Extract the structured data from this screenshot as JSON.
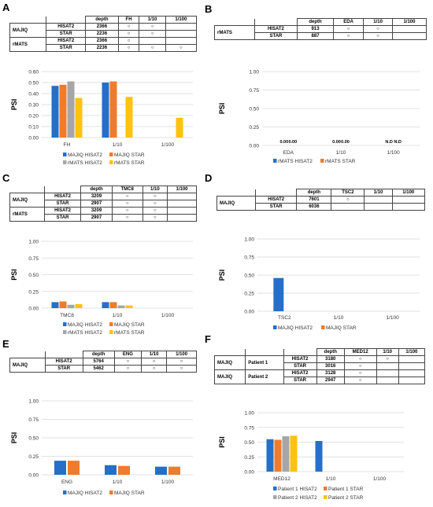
{
  "colors": {
    "blue": "#2470C8",
    "orange": "#F07B2A",
    "gray": "#A6A6A6",
    "yellow": "#FFC20F",
    "grid": "#D9D9D9"
  },
  "circle_mark": "○",
  "panels": {
    "A": {
      "label": "A",
      "table": {
        "header": [
          "depth",
          "FH",
          "1/10",
          "1/100"
        ],
        "groups": [
          {
            "name": "MAJIQ",
            "rows": [
              {
                "aligner": "HISAT2",
                "depth": "2366",
                "marks": [
                  true,
                  true,
                  false
                ]
              },
              {
                "aligner": "STAR",
                "depth": "2236",
                "marks": [
                  true,
                  true,
                  false
                ]
              }
            ]
          },
          {
            "name": "rMATS",
            "rows": [
              {
                "aligner": "HISAT2",
                "depth": "2366",
                "marks": [
                  true,
                  false,
                  false
                ]
              },
              {
                "aligner": "STAR",
                "depth": "2236",
                "marks": [
                  true,
                  true,
                  true
                ]
              }
            ]
          }
        ]
      },
      "chart_data": {
        "type": "bar",
        "ylabel": "PSI",
        "ylim": [
          0,
          0.6
        ],
        "yticks": [
          "0.00",
          "0.10",
          "0.20",
          "0.30",
          "0.40",
          "0.50",
          "0.60"
        ],
        "categories": [
          "FH",
          "1/10",
          "1/100"
        ],
        "series": [
          {
            "name": "MAJIQ HISAT2",
            "color": "blue",
            "values": [
              0.47,
              0.5,
              null
            ]
          },
          {
            "name": "MAJIQ STAR",
            "color": "orange",
            "values": [
              0.48,
              0.51,
              null
            ]
          },
          {
            "name": "rMATS HISAT2",
            "color": "gray",
            "values": [
              0.51,
              null,
              null
            ]
          },
          {
            "name": "rMATS STAR",
            "color": "yellow",
            "values": [
              0.36,
              0.37,
              0.18
            ]
          }
        ]
      }
    },
    "B": {
      "label": "B",
      "table": {
        "header": [
          "depth",
          "EDA",
          "1/10",
          "1/100"
        ],
        "groups": [
          {
            "name": "rMATS",
            "rows": [
              {
                "aligner": "HISAT2",
                "depth": "913",
                "marks": [
                  true,
                  true,
                  false
                ]
              },
              {
                "aligner": "STAR",
                "depth": "887",
                "marks": [
                  true,
                  true,
                  false
                ]
              }
            ]
          }
        ]
      },
      "chart_data": {
        "type": "bar",
        "ylabel": "PSI",
        "ylim": [
          0,
          1
        ],
        "yticks": [
          "0.00",
          "0.25",
          "0.50",
          "0.75",
          "1.00"
        ],
        "categories": [
          "EDA",
          "1/10",
          "1/100"
        ],
        "series": [
          {
            "name": "rMATS HISAT2",
            "color": "blue",
            "values": [
              0,
              0,
              null
            ]
          },
          {
            "name": "rMATS STAR",
            "color": "orange",
            "values": [
              0,
              0,
              null
            ]
          }
        ],
        "data_labels": [
          [
            "0.00",
            "0.00"
          ],
          [
            "0.00",
            "0.00"
          ],
          [
            "N.D",
            "N.D"
          ]
        ]
      }
    },
    "C": {
      "label": "C",
      "table": {
        "header": [
          "depth",
          "TMC8",
          "1/10",
          "1/100"
        ],
        "groups": [
          {
            "name": "MAJIQ",
            "rows": [
              {
                "aligner": "HISAT2",
                "depth": "3209",
                "marks": [
                  true,
                  true,
                  false
                ]
              },
              {
                "aligner": "STAR",
                "depth": "2907",
                "marks": [
                  true,
                  true,
                  false
                ]
              }
            ]
          },
          {
            "name": "rMATS",
            "rows": [
              {
                "aligner": "HISAT2",
                "depth": "3209",
                "marks": [
                  true,
                  true,
                  false
                ]
              },
              {
                "aligner": "STAR",
                "depth": "2907",
                "marks": [
                  true,
                  true,
                  false
                ]
              }
            ]
          }
        ]
      },
      "chart_data": {
        "type": "bar",
        "ylabel": "PSI",
        "ylim": [
          0,
          1
        ],
        "yticks": [
          "0.00",
          "0.25",
          "0.50",
          "0.75",
          "1.00"
        ],
        "categories": [
          "TMC8",
          "1/10",
          "1/100"
        ],
        "series": [
          {
            "name": "MAJIQ HISAT2",
            "color": "blue",
            "values": [
              0.09,
              0.09,
              null
            ]
          },
          {
            "name": "MAJIQ STAR",
            "color": "orange",
            "values": [
              0.1,
              0.09,
              null
            ]
          },
          {
            "name": "rMATS HISAT2",
            "color": "gray",
            "values": [
              0.05,
              0.04,
              null
            ]
          },
          {
            "name": "rMATS STAR",
            "color": "yellow",
            "values": [
              0.06,
              0.04,
              null
            ]
          }
        ]
      }
    },
    "D": {
      "label": "D",
      "table": {
        "header": [
          "depth",
          "TSC2",
          "1/10",
          "1/100"
        ],
        "groups": [
          {
            "name": "MAJIQ",
            "rows": [
              {
                "aligner": "HISAT2",
                "depth": "7601",
                "marks": [
                  true,
                  false,
                  false
                ]
              },
              {
                "aligner": "STAR",
                "depth": "6036",
                "marks": [
                  false,
                  false,
                  false
                ]
              }
            ]
          }
        ]
      },
      "chart_data": {
        "type": "bar",
        "ylabel": "PSI",
        "ylim": [
          0,
          1
        ],
        "yticks": [
          "0.00",
          "0.25",
          "0.50",
          "0.75",
          "1.00"
        ],
        "categories": [
          "TSC2",
          "1/10",
          "1/100"
        ],
        "series": [
          {
            "name": "MAJIQ HISAT2",
            "color": "blue",
            "values": [
              0.46,
              null,
              null
            ]
          },
          {
            "name": "MAJIQ STAR",
            "color": "orange",
            "values": [
              null,
              null,
              null
            ]
          }
        ]
      }
    },
    "E": {
      "label": "E",
      "table": {
        "header": [
          "depth",
          "ENG",
          "1/10",
          "1/100"
        ],
        "groups": [
          {
            "name": "MAJIQ",
            "rows": [
              {
                "aligner": "HISAT2",
                "depth": "5764",
                "marks": [
                  true,
                  true,
                  true
                ]
              },
              {
                "aligner": "STAR",
                "depth": "5462",
                "marks": [
                  true,
                  true,
                  true
                ]
              }
            ]
          }
        ]
      },
      "chart_data": {
        "type": "bar",
        "ylabel": "PSI",
        "ylim": [
          0,
          1
        ],
        "yticks": [
          "0.00",
          "0.25",
          "0.50",
          "0.75",
          "1.00"
        ],
        "categories": [
          "ENG",
          "1/10",
          "1/100"
        ],
        "series": [
          {
            "name": "MAJIQ HISAT2",
            "color": "blue",
            "values": [
              0.19,
              0.13,
              0.11
            ]
          },
          {
            "name": "MAJIQ STAR",
            "color": "orange",
            "values": [
              0.19,
              0.12,
              0.11
            ]
          }
        ]
      }
    },
    "F": {
      "label": "F",
      "table": {
        "header": [
          "depth",
          "MED12",
          "1/10",
          "1/100"
        ],
        "groups": [
          {
            "name": "MAJIQ",
            "patient": "Patient 1",
            "rows": [
              {
                "aligner": "HISAT2",
                "depth": "3180",
                "marks": [
                  true,
                  true,
                  false
                ]
              },
              {
                "aligner": "STAR",
                "depth": "3016",
                "marks": [
                  true,
                  false,
                  false
                ]
              }
            ]
          },
          {
            "name": "MAJIQ",
            "patient": "Patient 2",
            "rows": [
              {
                "aligner": "HISAT2",
                "depth": "3128",
                "marks": [
                  true,
                  false,
                  false
                ]
              },
              {
                "aligner": "STAR",
                "depth": "2947",
                "marks": [
                  true,
                  false,
                  false
                ]
              }
            ]
          }
        ]
      },
      "chart_data": {
        "type": "bar",
        "ylabel": "PSI",
        "ylim": [
          0,
          1
        ],
        "yticks": [
          "0.00",
          "0.25",
          "0.50",
          "0.75",
          "1.00"
        ],
        "categories": [
          "MED12",
          "1/10",
          "1/100"
        ],
        "series": [
          {
            "name": "Patient 1 HISAT2",
            "color": "blue",
            "values": [
              0.55,
              0.52,
              null
            ]
          },
          {
            "name": "Patient 1 STAR",
            "color": "orange",
            "values": [
              0.54,
              null,
              null
            ]
          },
          {
            "name": "Patient 2 HISAT2",
            "color": "gray",
            "values": [
              0.6,
              null,
              null
            ]
          },
          {
            "name": "Patient 2 STAR",
            "color": "yellow",
            "values": [
              0.61,
              null,
              null
            ]
          }
        ]
      }
    }
  }
}
